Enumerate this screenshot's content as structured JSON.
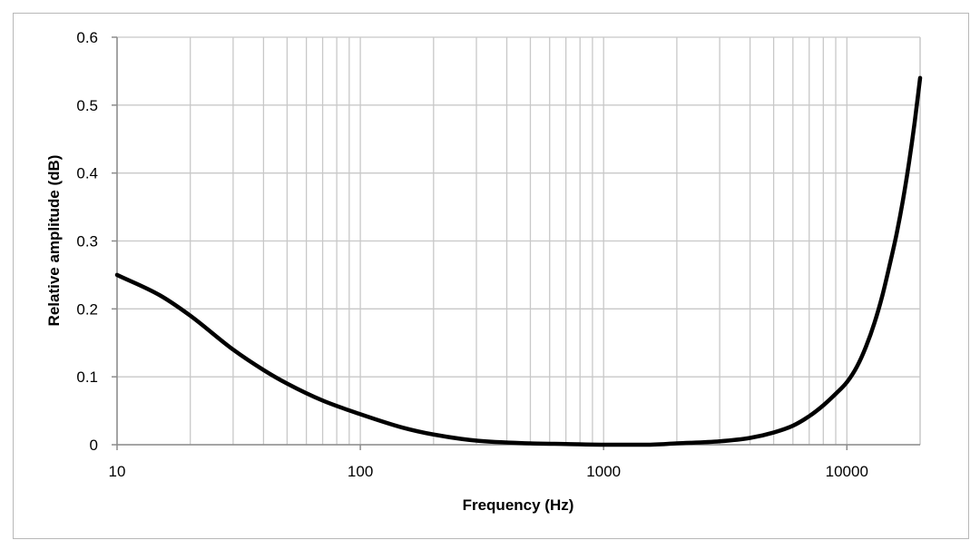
{
  "chart_data": {
    "type": "line",
    "title": "",
    "xlabel": "Frequency (Hz)",
    "ylabel": "Relative amplitude (dB)",
    "x_scale": "log",
    "xlim": [
      10,
      20000
    ],
    "ylim": [
      0,
      0.6
    ],
    "x_ticks": [
      10,
      100,
      1000,
      10000
    ],
    "x_tick_labels": [
      "10",
      "100",
      "1000",
      "10000"
    ],
    "y_ticks": [
      0,
      0.1,
      0.2,
      0.3,
      0.4,
      0.5,
      0.6
    ],
    "y_tick_labels": [
      "0",
      "0.1",
      "0.2",
      "0.3",
      "0.4",
      "0.5",
      "0.6"
    ],
    "grid": true,
    "legend": "none",
    "line_color": "#000000",
    "grid_color": "#c8c8c8",
    "series": [
      {
        "x": [
          10,
          15,
          20,
          30,
          40,
          50,
          70,
          100,
          150,
          200,
          300,
          500,
          700,
          1000,
          1500,
          2000,
          3000,
          4000,
          5000,
          6000,
          7000,
          8000,
          9000,
          10000,
          11000,
          12000,
          13000,
          14000,
          15000,
          16000,
          17000,
          18000,
          19000,
          20000
        ],
        "y": [
          0.25,
          0.22,
          0.19,
          0.14,
          0.11,
          0.09,
          0.065,
          0.045,
          0.025,
          0.015,
          0.006,
          0.002,
          0.001,
          0.0,
          0.0,
          0.002,
          0.005,
          0.01,
          0.018,
          0.028,
          0.042,
          0.058,
          0.075,
          0.092,
          0.115,
          0.145,
          0.18,
          0.22,
          0.265,
          0.31,
          0.36,
          0.415,
          0.475,
          0.54
        ]
      }
    ]
  }
}
